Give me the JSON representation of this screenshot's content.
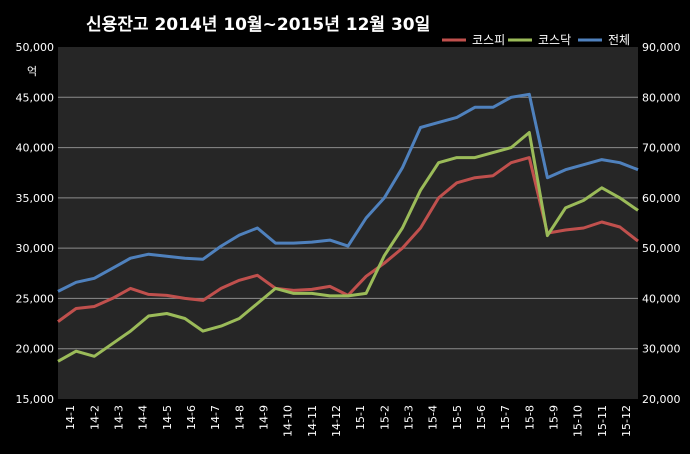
{
  "chart_data": {
    "type": "line",
    "title": "신용잔고  2014년 10월~2015년 12월 30일",
    "unit_label": "억",
    "x_ticks": [
      "14-1",
      "14-2",
      "14-3",
      "14-4",
      "14-5",
      "14-6",
      "14-7",
      "14-8",
      "14-9",
      "14-10",
      "14-11",
      "14-12",
      "15-1",
      "15-2",
      "15-3",
      "15-4",
      "15-5",
      "15-6",
      "15-7",
      "15-8",
      "15-9",
      "15-10",
      "15-11",
      "15-12"
    ],
    "left_axis": {
      "ylim": [
        15000,
        50000
      ],
      "ticks": [
        "15,000",
        "20,000",
        "25,000",
        "30,000",
        "35,000",
        "40,000",
        "45,000",
        "50,000"
      ]
    },
    "right_axis": {
      "ylim": [
        20000,
        90000
      ],
      "ticks": [
        "20,000",
        "30,000",
        "40,000",
        "50,000",
        "60,000",
        "70,000",
        "80,000",
        "90,000"
      ]
    },
    "grid": true,
    "legend_position": "top-right",
    "series": [
      {
        "name": "코스피",
        "axis": "left",
        "color": "#c0504d",
        "values": [
          22700,
          24000,
          24200,
          25000,
          26000,
          25400,
          25300,
          25000,
          24800,
          26000,
          26800,
          27300,
          26000,
          25800,
          25900,
          26200,
          25300,
          27200,
          28500,
          30000,
          32000,
          35000,
          36500,
          37000,
          37200,
          38500,
          39000,
          31500,
          31800,
          32000,
          32600,
          32100,
          30700
        ]
      },
      {
        "name": "코스닥",
        "axis": "right",
        "color": "#9bbb59",
        "values": [
          27500,
          29500,
          28500,
          31000,
          33500,
          36500,
          37000,
          36000,
          33500,
          34500,
          36000,
          39000,
          42000,
          41000,
          41000,
          40500,
          40500,
          41000,
          48500,
          54000,
          61500,
          67000,
          68000,
          68000,
          69000,
          70000,
          73000,
          52500,
          58000,
          59500,
          62000,
          60000,
          57500
        ]
      },
      {
        "name": "전체",
        "axis": "left",
        "color": "#4f81bd",
        "values": [
          25700,
          26600,
          27000,
          28000,
          29000,
          29400,
          29200,
          29000,
          28900,
          30200,
          31300,
          32000,
          30500,
          30500,
          30600,
          30800,
          30200,
          33000,
          35000,
          38000,
          42000,
          42500,
          43000,
          44000,
          44000,
          45000,
          45300,
          37000,
          37800,
          38300,
          38800,
          38500,
          37800
        ]
      }
    ]
  }
}
